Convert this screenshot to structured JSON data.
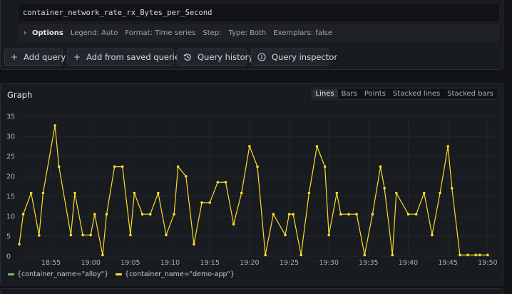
{
  "query": {
    "expression": "container_network_rate_rx_Bytes_per_Second",
    "options_label": "Options",
    "options": [
      "Legend: Auto",
      "Format: Time series",
      "Step:",
      "Type: Both",
      "Exemplars: false"
    ]
  },
  "buttons": {
    "add_query": "Add query",
    "add_saved": "Add from saved queries",
    "history": "Query history",
    "inspector": "Query inspector"
  },
  "graph": {
    "title": "Graph",
    "modes": [
      "Lines",
      "Bars",
      "Points",
      "Stacked lines",
      "Stacked bars"
    ],
    "active_mode": "Lines"
  },
  "legend": [
    {
      "label": "{container_name=\"alloy\"}",
      "color": "#73bf69"
    },
    {
      "label": "{container_name=\"demo-app\"}",
      "color": "#fade2a"
    }
  ],
  "chart_data": {
    "type": "line",
    "ylim": [
      0,
      35
    ],
    "yticks": [
      0,
      5,
      10,
      15,
      20,
      25,
      30,
      35
    ],
    "xlim": [
      "18:51",
      "19:51"
    ],
    "xticks": [
      "18:55",
      "19:00",
      "19:05",
      "19:10",
      "19:15",
      "19:20",
      "19:25",
      "19:30",
      "19:35",
      "19:40",
      "19:45",
      "19:50"
    ],
    "grid": true,
    "series": [
      {
        "name": "{container_name=\"demo-app\"}",
        "color": "#fade2a",
        "x": [
          "18:51:00",
          "18:51:30",
          "18:52:30",
          "18:53:30",
          "18:54:00",
          "18:55:30",
          "18:56:00",
          "18:57:30",
          "18:58:00",
          "18:59:00",
          "19:00:00",
          "19:00:30",
          "19:01:30",
          "19:02:00",
          "19:03:00",
          "19:04:00",
          "19:05:00",
          "19:05:30",
          "19:06:30",
          "19:07:30",
          "19:08:30",
          "19:09:30",
          "19:10:30",
          "19:11:00",
          "19:12:00",
          "19:13:00",
          "19:14:00",
          "19:15:00",
          "19:16:00",
          "19:17:00",
          "19:18:00",
          "19:19:00",
          "19:20:00",
          "19:21:00",
          "19:22:00",
          "19:23:00",
          "19:24:30",
          "19:25:00",
          "19:25:30",
          "19:26:30",
          "19:27:30",
          "19:28:30",
          "19:29:30",
          "19:30:00",
          "19:31:00",
          "19:31:30",
          "19:32:30",
          "19:33:30",
          "19:34:30",
          "19:35:30",
          "19:36:30",
          "19:37:00",
          "19:38:00",
          "19:38:30",
          "19:40:00",
          "19:41:00",
          "19:42:00",
          "19:43:00",
          "19:44:00",
          "19:45:00",
          "19:45:30",
          "19:46:30",
          "19:47:30",
          "19:48:30",
          "19:49:00",
          "19:50:00"
        ],
        "values": [
          3,
          10.5,
          15.8,
          5.2,
          15.8,
          32.7,
          22.4,
          5.3,
          15.8,
          5.3,
          5.3,
          10.5,
          0.3,
          10.5,
          22.4,
          22.4,
          5.3,
          15.8,
          10.5,
          10.5,
          15.8,
          5.3,
          10.5,
          22.4,
          20,
          3,
          13.4,
          13.4,
          18.5,
          18.5,
          8,
          15.8,
          27.5,
          22.4,
          0.3,
          10.5,
          5.3,
          10.5,
          10.5,
          0.3,
          15.8,
          27.5,
          22.4,
          5.3,
          15.8,
          10.5,
          10.5,
          10.5,
          0.3,
          10.5,
          22.4,
          17,
          0.3,
          15.8,
          10.5,
          10.5,
          15.8,
          5.3,
          15.8,
          27.5,
          17,
          0.3,
          0.3,
          0.3,
          0.3,
          0.3
        ]
      }
    ]
  }
}
